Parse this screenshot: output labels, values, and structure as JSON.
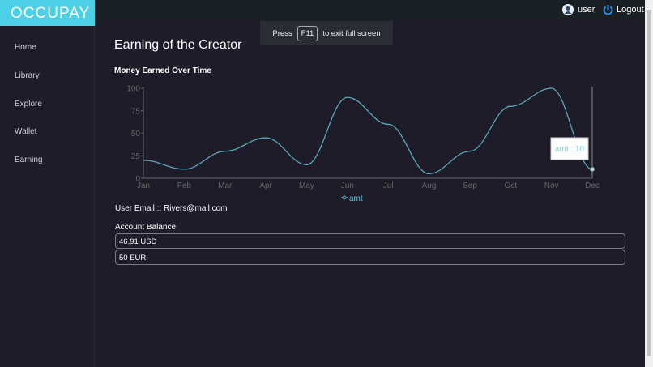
{
  "app": {
    "logo": "OCCUPAY"
  },
  "header": {
    "user_label": "user",
    "logout_label": "Logout"
  },
  "fullscreen_notice": {
    "prefix": "Press",
    "key": "F11",
    "suffix": "to exit full screen"
  },
  "sidebar": {
    "items": [
      {
        "label": "Home"
      },
      {
        "label": "Library"
      },
      {
        "label": "Explore"
      },
      {
        "label": "Wallet"
      },
      {
        "label": "Earning"
      }
    ]
  },
  "main": {
    "title": "Earning of the Creator",
    "chart_title": "Money Earned Over Time",
    "email_text": "User Email :: Rivers@mail.com",
    "balance_label": "Account Balance",
    "balances": [
      "46.91 USD",
      "50 EUR"
    ]
  },
  "colors": {
    "accent": "#4dcfe6",
    "line": "#5aa6b8"
  },
  "chart_data": {
    "type": "line",
    "title": "Money Earned Over Time",
    "categories": [
      "Jan",
      "Feb",
      "Mar",
      "Apr",
      "May",
      "Jun",
      "Jul",
      "Aug",
      "Sep",
      "Oct",
      "Nov",
      "Dec"
    ],
    "series": [
      {
        "name": "amt",
        "values": [
          20,
          10,
          30,
          45,
          15,
          90,
          60,
          5,
          30,
          80,
          100,
          10
        ]
      }
    ],
    "ylim": [
      0,
      100
    ],
    "yticks": [
      "0",
      "25",
      "50",
      "75",
      "100"
    ],
    "legend": "bottom",
    "tooltip": {
      "label": "amt : 10",
      "category": "Dec"
    }
  }
}
